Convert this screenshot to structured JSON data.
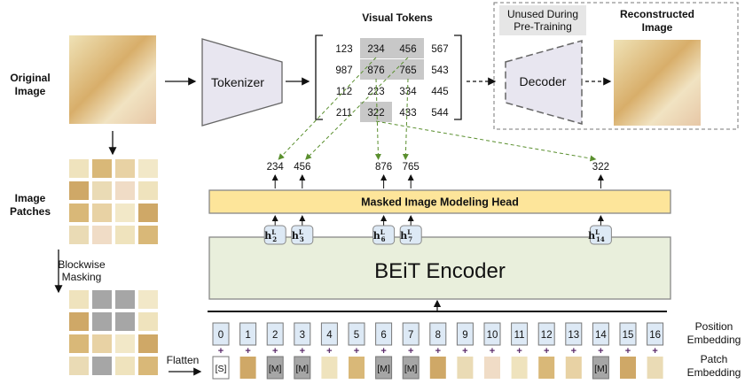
{
  "labels": {
    "original_image": [
      "Original",
      "Image"
    ],
    "image_patches": [
      "Image",
      "Patches"
    ],
    "blockwise_masking": [
      "Blockwise",
      "Masking"
    ],
    "flatten": "Flatten",
    "visual_tokens": "Visual Tokens",
    "tokenizer": "Tokenizer",
    "unused": [
      "Unused During",
      "Pre-Training"
    ],
    "decoder": "Decoder",
    "reconstructed_image": [
      "Reconstructed",
      "Image"
    ],
    "mim_head": "Masked Image Modeling Head",
    "encoder": "BEiT Encoder",
    "position_embedding": [
      "Position",
      "Embedding"
    ],
    "patch_embedding": [
      "Patch",
      "Embedding"
    ]
  },
  "visual_tokens": [
    [
      "123",
      "234",
      "456",
      "567"
    ],
    [
      "987",
      "876",
      "765",
      "543"
    ],
    [
      "112",
      "223",
      "334",
      "445"
    ],
    [
      "211",
      "322",
      "433",
      "544"
    ]
  ],
  "highlighted_tokens": [
    [
      0,
      1
    ],
    [
      0,
      2
    ],
    [
      1,
      1
    ],
    [
      1,
      2
    ],
    [
      3,
      1
    ]
  ],
  "predicted": [
    {
      "position": 2,
      "token": "234",
      "hidden": "h",
      "sub": "2",
      "sup": "L"
    },
    {
      "position": 3,
      "token": "456",
      "hidden": "h",
      "sub": "3",
      "sup": "L"
    },
    {
      "position": 6,
      "token": "876",
      "hidden": "h",
      "sub": "6",
      "sup": "L"
    },
    {
      "position": 7,
      "token": "765",
      "hidden": "h",
      "sub": "7",
      "sup": "L"
    },
    {
      "position": 14,
      "token": "322",
      "hidden": "h",
      "sub": "14",
      "sup": "L"
    }
  ],
  "positions": [
    "0",
    "1",
    "2",
    "3",
    "4",
    "5",
    "6",
    "7",
    "8",
    "9",
    "10",
    "11",
    "12",
    "13",
    "14",
    "15",
    "16"
  ],
  "plus": "+",
  "patch_tokens": [
    "[S]",
    "img",
    "[M]",
    "[M]",
    "img",
    "img",
    "[M]",
    "[M]",
    "img",
    "img",
    "img",
    "img",
    "img",
    "img",
    "[M]",
    "img",
    "img"
  ],
  "colors": {
    "mim_head": "#fde59a",
    "encoder": "#e9efdc",
    "position_box": "#dde9f5",
    "mask": "#a6a6a6",
    "tokenizer": "#e8e6f0",
    "token_highlight": "#c8c8c8",
    "link_arrow": "#5a8f2e"
  }
}
